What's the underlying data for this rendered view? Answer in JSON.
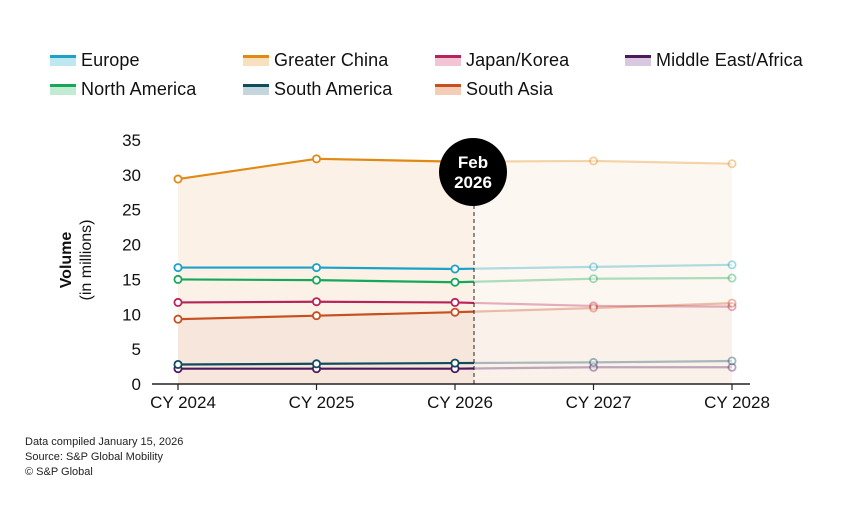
{
  "chart_data": {
    "type": "line",
    "title": "",
    "xlabel": "",
    "ylabel": "Volume",
    "ylabel_sub": "(in millions)",
    "categories": [
      "CY 2024",
      "CY 2025",
      "CY 2026",
      "CY 2027",
      "CY 2028"
    ],
    "ylim": [
      0,
      35
    ],
    "yticks": [
      "0",
      "5",
      "10",
      "15",
      "20",
      "25",
      "30",
      "35"
    ],
    "grid": false,
    "legend_position": "top",
    "forecast_marker": {
      "label_line1": "Feb",
      "label_line2": "2026"
    },
    "series": [
      {
        "name": "Europe",
        "color": "#1ba3c6",
        "values": [
          16.7,
          16.7,
          16.5,
          16.8,
          17.1
        ]
      },
      {
        "name": "Greater China",
        "color": "#e08a14",
        "values": [
          29.4,
          32.3,
          31.9,
          32.0,
          31.6
        ]
      },
      {
        "name": "Japan/Korea",
        "color": "#b8235a",
        "values": [
          11.7,
          11.8,
          11.7,
          11.2,
          11.1
        ]
      },
      {
        "name": "Middle East/Africa",
        "color": "#4b1b5e",
        "values": [
          2.2,
          2.2,
          2.2,
          2.4,
          2.4
        ]
      },
      {
        "name": "North America",
        "color": "#16a85a",
        "values": [
          15.0,
          14.9,
          14.6,
          15.1,
          15.2
        ]
      },
      {
        "name": "South America",
        "color": "#0e4c5e",
        "values": [
          2.8,
          2.9,
          3.0,
          3.1,
          3.3
        ]
      },
      {
        "name": "South Asia",
        "color": "#c8501e",
        "values": [
          9.3,
          9.8,
          10.3,
          10.9,
          11.6
        ]
      }
    ]
  },
  "footer": {
    "line1": "Data compiled January 15, 2026",
    "line2": "Source: S&P Global Mobility",
    "line3": "© S&P Global"
  }
}
